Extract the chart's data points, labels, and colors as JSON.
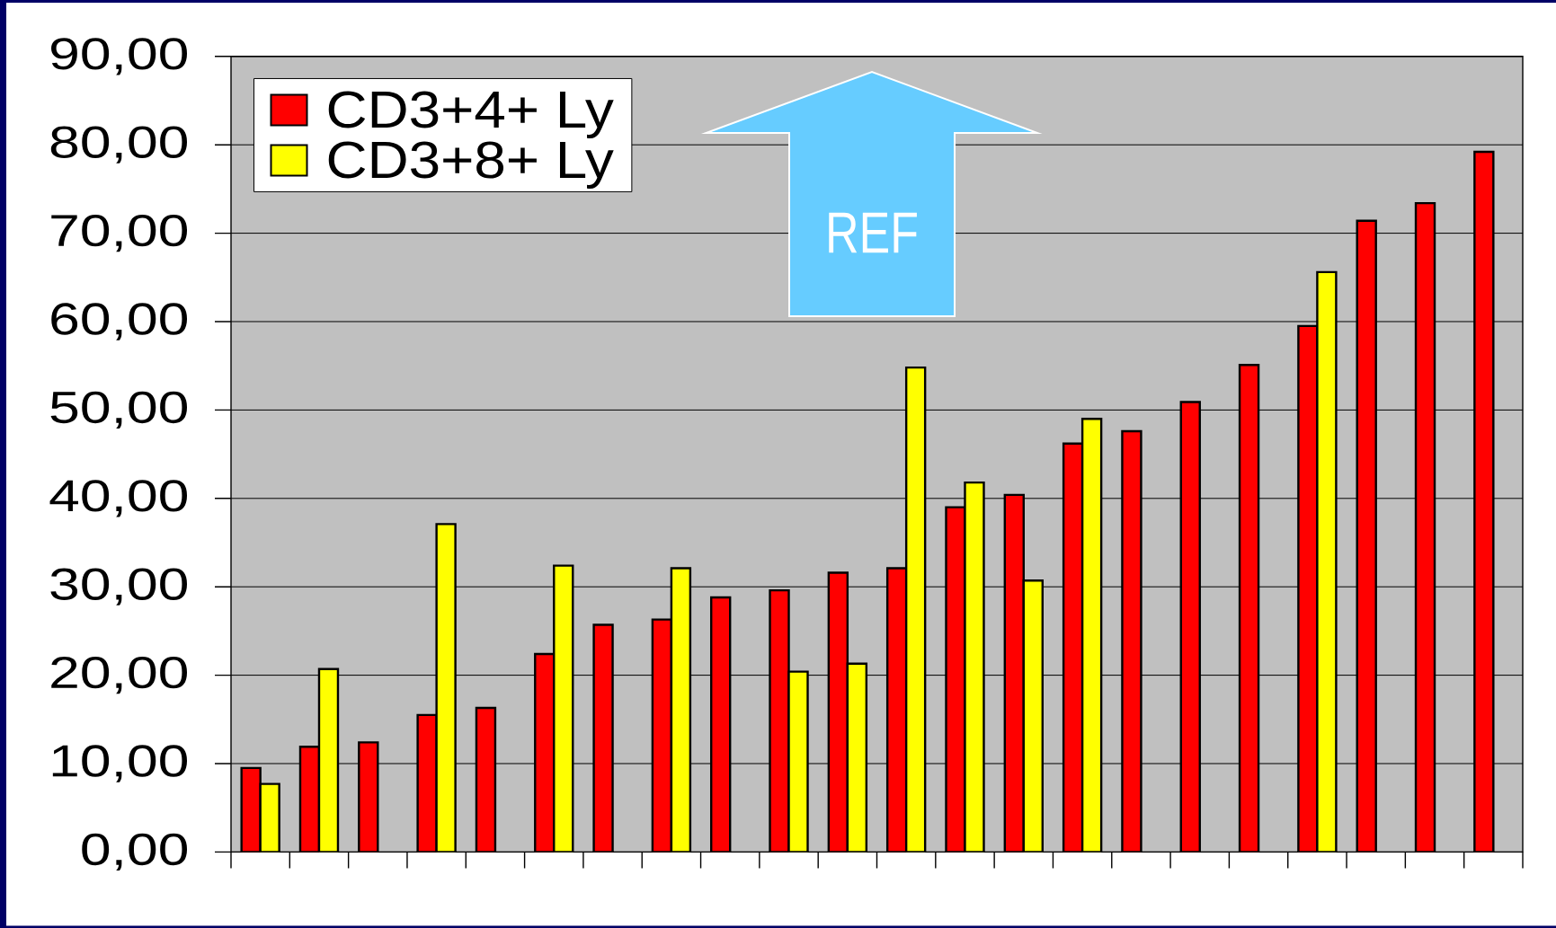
{
  "chart_data": {
    "type": "bar",
    "categories": [
      null,
      null,
      null,
      null,
      null,
      null,
      null,
      null,
      null,
      null,
      null,
      null,
      null,
      null,
      null,
      null,
      null,
      null,
      null,
      null,
      null,
      null
    ],
    "series": [
      {
        "name": "CD3+4+ Ly",
        "color": "#ff0000",
        "values": [
          9.5,
          11.9,
          12.4,
          15.5,
          16.3,
          22.4,
          25.7,
          26.3,
          28.8,
          29.6,
          31.6,
          32.1,
          39.0,
          40.4,
          46.2,
          47.6,
          50.9,
          55.1,
          59.5,
          71.4,
          73.4,
          79.2
        ]
      },
      {
        "name": "CD3+8+ Ly",
        "color": "#ffff00",
        "values": [
          7.7,
          20.7,
          null,
          37.1,
          null,
          32.4,
          null,
          32.1,
          null,
          20.4,
          21.3,
          54.8,
          41.8,
          30.7,
          49.0,
          null,
          null,
          null,
          65.6,
          null,
          null,
          null
        ]
      }
    ],
    "ylim": [
      0,
      90
    ],
    "yticks": [
      {
        "value": 0,
        "label": "0,00"
      },
      {
        "value": 10,
        "label": "10,00"
      },
      {
        "value": 20,
        "label": "20,00"
      },
      {
        "value": 30,
        "label": "30,00"
      },
      {
        "value": 40,
        "label": "40,00"
      },
      {
        "value": 50,
        "label": "50,00"
      },
      {
        "value": 60,
        "label": "60,00"
      },
      {
        "value": 70,
        "label": "70,00"
      },
      {
        "value": 80,
        "label": "80,00"
      },
      {
        "value": 90,
        "label": "90,00"
      }
    ],
    "grid": "y",
    "legend": "top left",
    "annotations": [
      "REF"
    ]
  }
}
